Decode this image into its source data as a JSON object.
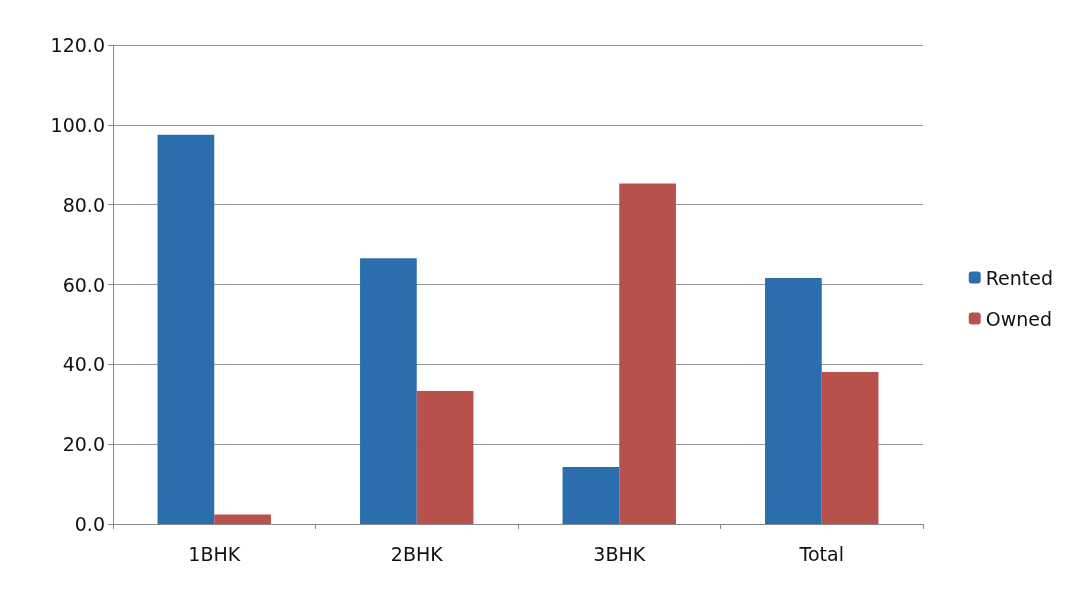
{
  "chart_data": {
    "type": "bar",
    "categories": [
      "1BHK",
      "2BHK",
      "3BHK",
      "Total"
    ],
    "series": [
      {
        "name": "Rented",
        "color": "#2a6ead",
        "values": [
          97.5,
          66.6,
          14.3,
          61.6
        ]
      },
      {
        "name": "Owned",
        "color": "#b8504b",
        "values": [
          2.4,
          33.3,
          85.3,
          38.1
        ]
      }
    ],
    "ylim": [
      0,
      120
    ],
    "yticks": [
      {
        "value": 0,
        "label": "0.0"
      },
      {
        "value": 20,
        "label": "20.0"
      },
      {
        "value": 40,
        "label": "40.0"
      },
      {
        "value": 60,
        "label": "60.0"
      },
      {
        "value": 80,
        "label": "80.0"
      },
      {
        "value": 100,
        "label": "100.0"
      },
      {
        "value": 120,
        "label": "120.0"
      }
    ],
    "grid": "y",
    "legend": "right"
  }
}
